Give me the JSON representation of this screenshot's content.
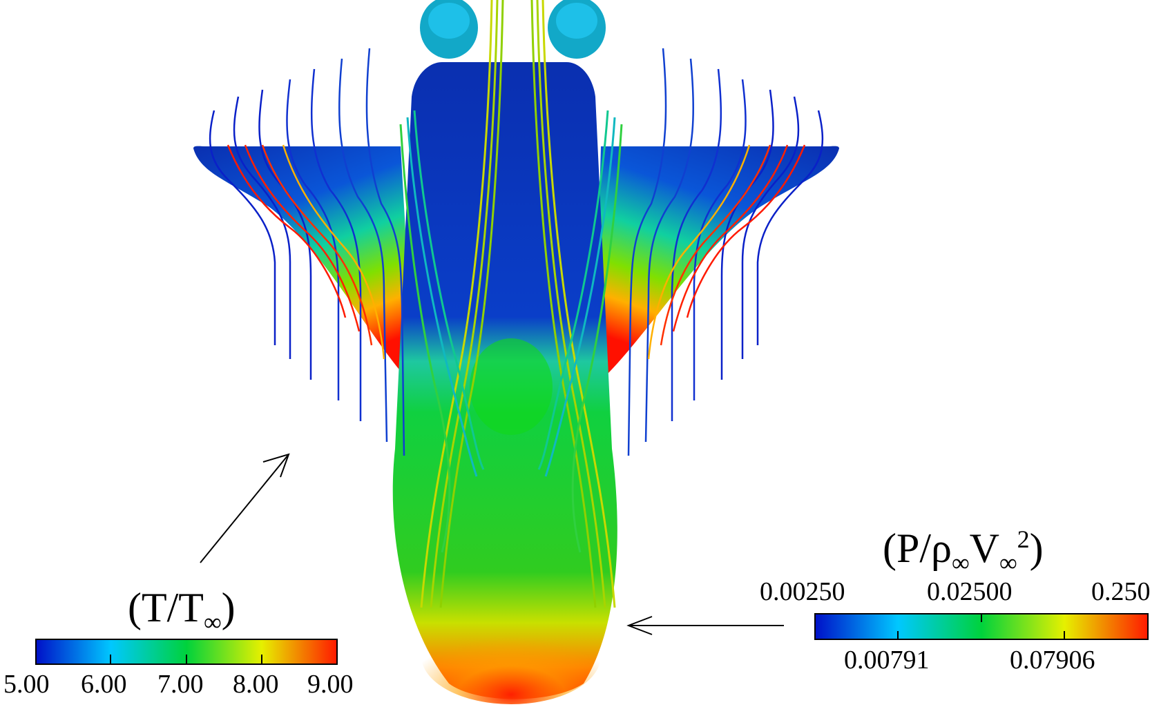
{
  "temperature_legend": {
    "title_main": "(T/T",
    "title_sub": "∞",
    "title_close": ")",
    "ticks": [
      "5.00",
      "6.00",
      "7.00",
      "8.00",
      "9.00"
    ],
    "colors": [
      "#0010c8",
      "#00c8ff",
      "#00d23c",
      "#e6f000",
      "#ff1a00"
    ]
  },
  "pressure_legend": {
    "title_p": "(P/ρ",
    "title_sub1": "∞",
    "title_v": "V",
    "title_sub2": "∞",
    "title_sup": "2",
    "title_close": ")",
    "ticks_top": [
      "0.00250",
      "0.02500",
      "0.250"
    ],
    "ticks_bottom": [
      "0.00791",
      "0.07906"
    ],
    "colors": [
      "#0010c8",
      "#00c8ff",
      "#00d23c",
      "#e6f000",
      "#ff1a00"
    ]
  }
}
